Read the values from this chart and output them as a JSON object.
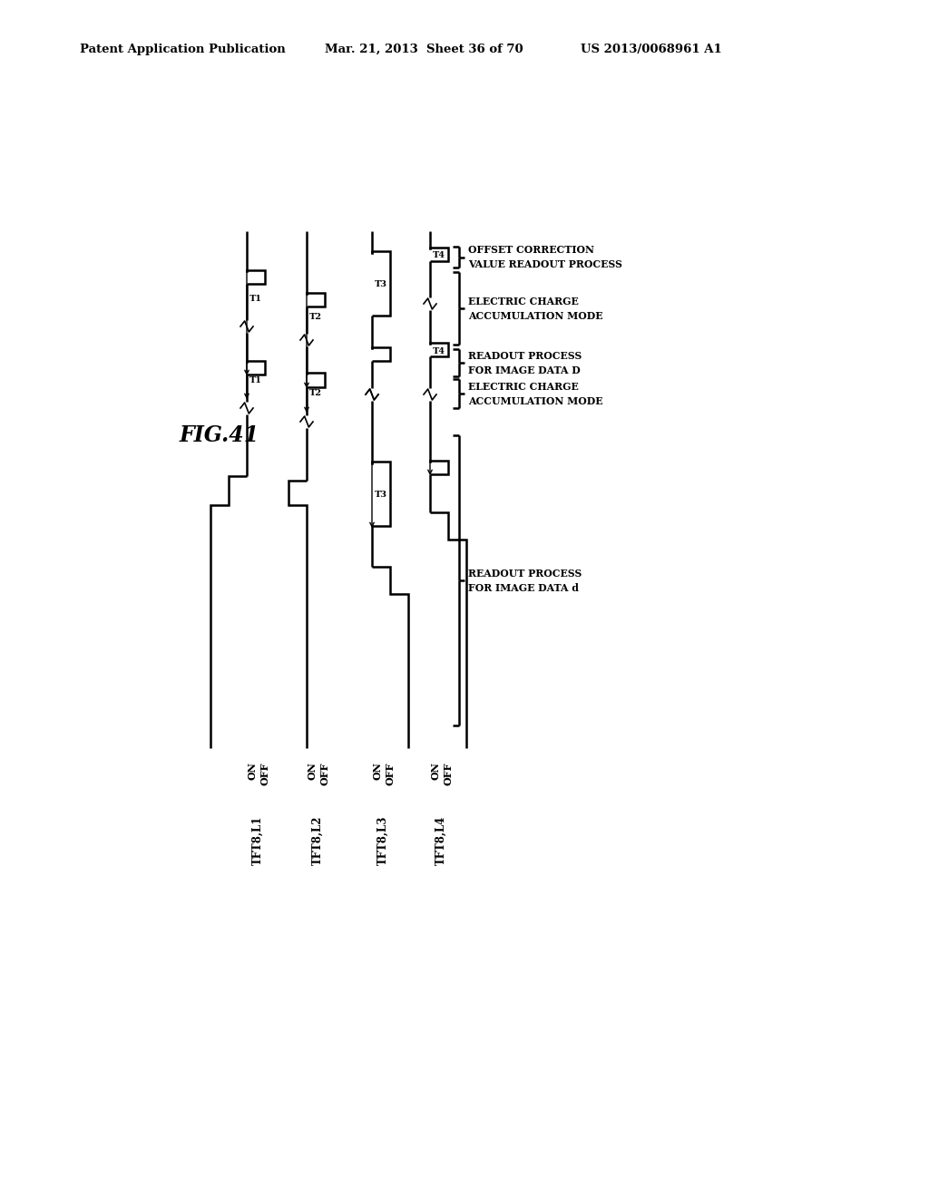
{
  "title": "FIG.41",
  "header_left": "Patent Application Publication",
  "header_mid": "Mar. 21, 2013  Sheet 36 of 70",
  "header_right": "US 2013/0068961 A1",
  "signals": [
    "TFT8,L1",
    "TFT8,L2",
    "TFT8,L3",
    "TFT8,L4"
  ],
  "annotations_right": [
    "OFFSET CORRECTION\nVALUE READOUT PROCESS",
    "ELECTRIC CHARGE\nACCUMULATION MODE",
    "READOUT PROCESS\nFOR IMAGE DATA D",
    "ELECTRIC CHARGE\nACCUMULATION MODE",
    "READOUT PROCESS\nFOR IMAGE DATA d"
  ],
  "bg_color": "#ffffff",
  "line_color": "#000000"
}
